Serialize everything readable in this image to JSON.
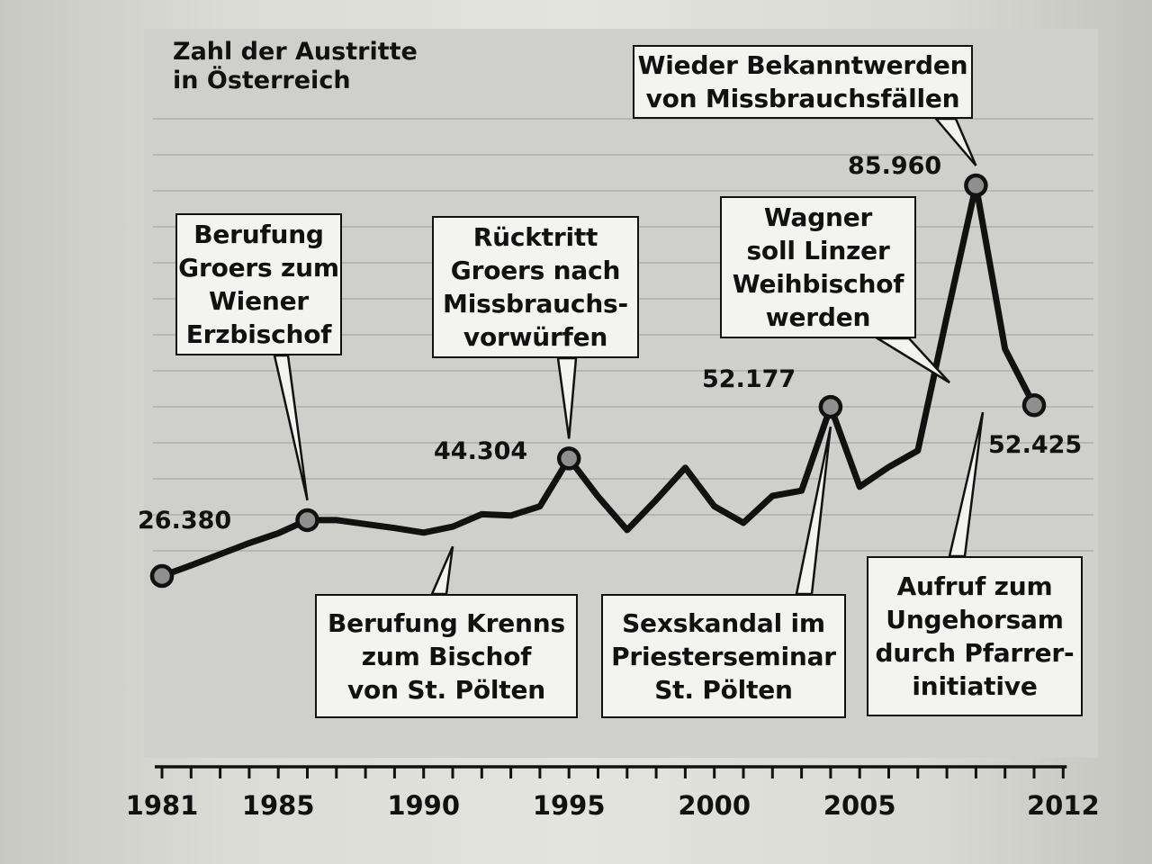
{
  "chart_data": {
    "type": "line",
    "title": "Zahl der Austritte\nin Österreich",
    "x": [
      1981,
      1982,
      1983,
      1984,
      1985,
      1986,
      1987,
      1988,
      1989,
      1990,
      1991,
      1992,
      1993,
      1994,
      1995,
      1996,
      1997,
      1998,
      1999,
      2000,
      2001,
      2002,
      2003,
      2004,
      2005,
      2006,
      2007,
      2008,
      2009,
      2010,
      2011
    ],
    "values": [
      26380,
      28000,
      29700,
      31400,
      32900,
      34900,
      34900,
      34300,
      33700,
      33000,
      33900,
      35800,
      35600,
      37000,
      44304,
      38500,
      33400,
      38000,
      42900,
      37000,
      34500,
      38600,
      39400,
      52177,
      40000,
      43000,
      45500,
      66000,
      85960,
      61000,
      52425
    ],
    "value_labels": [
      {
        "x": 1981,
        "text": "26.380"
      },
      {
        "x": 1995,
        "text": "44.304"
      },
      {
        "x": 2004,
        "text": "52.177"
      },
      {
        "x": 2009,
        "text": "85.960"
      },
      {
        "x": 2011,
        "text": "52.425"
      }
    ],
    "annotations": [
      {
        "x": 1986,
        "text": "Berufung\nGroers zum\nWiener\nErzbischof"
      },
      {
        "x": 1991,
        "text": "Berufung Krenns\nzum Bischof\nvon St. Pölten"
      },
      {
        "x": 1995,
        "text": "Rücktritt\nGroers nach\nMissbrauchs-\nvorwürfen"
      },
      {
        "x": 2004,
        "text": "Sexskandal im\nPriesterseminar\nSt. Pölten"
      },
      {
        "x": 2008,
        "text": "Wagner\nsoll Linzer\nWeihbischof\nwerden"
      },
      {
        "x": 2009,
        "text": "Wieder Bekanntwerden\nvon Missbrauchsfällen"
      },
      {
        "x": 2010,
        "text": "Aufruf zum\nUngehorsam\ndurch Pfarrer-\ninitiative"
      }
    ],
    "xticks_labeled": [
      1981,
      1985,
      1990,
      1995,
      2000,
      2005,
      2012
    ],
    "xlim": [
      1981,
      2012
    ],
    "marked_points": [
      1981,
      1986,
      1995,
      2004,
      2009,
      2011
    ],
    "grid": true
  },
  "colors": {
    "line": "#111111",
    "marker_fill": "#8f8f8f",
    "panel": "#cfcfcb"
  }
}
